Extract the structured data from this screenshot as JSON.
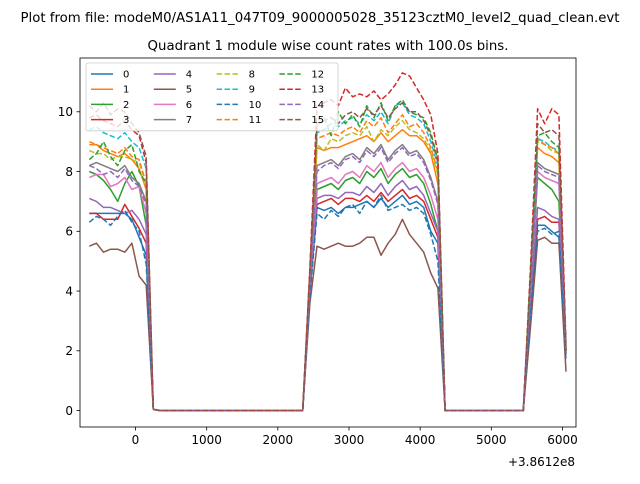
{
  "suptitle": "Plot from file: modeM0/AS1A11_047T09_9000005028_35123cztM0_level2_quad_clean.evt",
  "chart_data": {
    "type": "line",
    "title": "Quadrant 1 module wise count rates with 100.0s bins.",
    "xlabel": "",
    "ylabel": "",
    "x_offset_label": "+3.8612e8",
    "xlim": [
      -780,
      6190
    ],
    "ylim": [
      -0.55,
      11.8
    ],
    "xticks": [
      0,
      1000,
      2000,
      3000,
      4000,
      5000,
      6000
    ],
    "yticks": [
      0,
      2,
      4,
      6,
      8,
      10
    ],
    "grid": false,
    "legend": {
      "position": "top-left",
      "columns": 4
    },
    "x": [
      -650,
      -550,
      -450,
      -350,
      -250,
      -150,
      -50,
      50,
      150,
      250,
      350,
      450,
      550,
      650,
      750,
      850,
      950,
      1050,
      1150,
      1250,
      1350,
      1450,
      1550,
      1650,
      1750,
      1850,
      1950,
      2050,
      2150,
      2250,
      2350,
      2450,
      2550,
      2650,
      2750,
      2850,
      2950,
      3050,
      3150,
      3250,
      3350,
      3450,
      3550,
      3650,
      3750,
      3850,
      3950,
      4050,
      4150,
      4250,
      4350,
      4450,
      4550,
      4650,
      4750,
      4850,
      4950,
      5050,
      5150,
      5250,
      5350,
      5450,
      5550,
      5650,
      5750,
      5850,
      5950,
      6050
    ],
    "series": [
      {
        "name": "0",
        "color": "#1f77b4",
        "dash": false,
        "values": [
          6.6,
          6.6,
          6.6,
          6.6,
          6.6,
          6.6,
          6.4,
          5.8,
          5.2,
          0.04,
          0.0,
          0.0,
          0.0,
          0.0,
          0.0,
          0.0,
          0.0,
          0.0,
          0.0,
          0.0,
          0.0,
          0.0,
          0.0,
          0.0,
          0.0,
          0.0,
          0.0,
          0.0,
          0.0,
          0.0,
          0.0,
          4.0,
          6.8,
          6.7,
          6.8,
          6.6,
          6.8,
          6.8,
          6.9,
          7.0,
          6.8,
          7.1,
          6.8,
          7.0,
          7.2,
          6.9,
          7.0,
          6.8,
          6.0,
          5.6,
          0.0,
          0.0,
          0.0,
          0.0,
          0.0,
          0.0,
          0.0,
          0.0,
          0.0,
          0.0,
          0.0,
          0.0,
          3.4,
          6.2,
          6.2,
          6.0,
          5.8,
          2.0
        ]
      },
      {
        "name": "1",
        "color": "#ff7f0e",
        "dash": false,
        "values": [
          8.9,
          8.9,
          8.7,
          8.6,
          8.5,
          8.6,
          8.4,
          8.1,
          7.4,
          0.04,
          0.0,
          0.0,
          0.0,
          0.0,
          0.0,
          0.0,
          0.0,
          0.0,
          0.0,
          0.0,
          0.0,
          0.0,
          0.0,
          0.0,
          0.0,
          0.0,
          0.0,
          0.0,
          0.0,
          0.0,
          0.0,
          4.5,
          8.8,
          8.7,
          8.8,
          8.8,
          8.9,
          9.0,
          9.1,
          9.2,
          9.0,
          9.3,
          9.0,
          9.2,
          9.4,
          9.2,
          9.2,
          9.0,
          8.6,
          7.6,
          0.0,
          0.0,
          0.0,
          0.0,
          0.0,
          0.0,
          0.0,
          0.0,
          0.0,
          0.0,
          0.0,
          0.0,
          4.2,
          8.8,
          8.6,
          8.5,
          8.3,
          2.0
        ]
      },
      {
        "name": "2",
        "color": "#2ca02c",
        "dash": false,
        "values": [
          8.0,
          7.9,
          7.7,
          7.4,
          7.0,
          7.6,
          8.0,
          7.5,
          6.2,
          0.04,
          0.0,
          0.0,
          0.0,
          0.0,
          0.0,
          0.0,
          0.0,
          0.0,
          0.0,
          0.0,
          0.0,
          0.0,
          0.0,
          0.0,
          0.0,
          0.0,
          0.0,
          0.0,
          0.0,
          0.0,
          0.0,
          4.2,
          7.4,
          7.5,
          7.6,
          7.4,
          7.7,
          7.8,
          7.6,
          8.0,
          7.8,
          8.1,
          7.6,
          7.9,
          8.1,
          7.8,
          7.9,
          7.6,
          6.9,
          6.0,
          0.0,
          0.0,
          0.0,
          0.0,
          0.0,
          0.0,
          0.0,
          0.0,
          0.0,
          0.0,
          0.0,
          0.0,
          3.8,
          7.8,
          7.6,
          7.4,
          7.0,
          1.9
        ]
      },
      {
        "name": "3",
        "color": "#d62728",
        "dash": false,
        "values": [
          6.6,
          6.6,
          6.4,
          6.4,
          6.4,
          6.9,
          6.5,
          6.1,
          5.6,
          0.04,
          0.0,
          0.0,
          0.0,
          0.0,
          0.0,
          0.0,
          0.0,
          0.0,
          0.0,
          0.0,
          0.0,
          0.0,
          0.0,
          0.0,
          0.0,
          0.0,
          0.0,
          0.0,
          0.0,
          0.0,
          0.0,
          4.0,
          6.9,
          7.0,
          7.1,
          6.9,
          7.1,
          7.1,
          7.0,
          7.2,
          7.0,
          7.3,
          7.0,
          7.2,
          7.4,
          7.1,
          7.2,
          7.0,
          6.4,
          5.8,
          0.0,
          0.0,
          0.0,
          0.0,
          0.0,
          0.0,
          0.0,
          0.0,
          0.0,
          0.0,
          0.0,
          0.0,
          3.5,
          6.4,
          6.5,
          6.3,
          6.3,
          2.0
        ]
      },
      {
        "name": "4",
        "color": "#9467bd",
        "dash": false,
        "values": [
          7.1,
          7.0,
          6.8,
          6.8,
          6.7,
          6.6,
          6.7,
          6.4,
          5.9,
          0.04,
          0.0,
          0.0,
          0.0,
          0.0,
          0.0,
          0.0,
          0.0,
          0.0,
          0.0,
          0.0,
          0.0,
          0.0,
          0.0,
          0.0,
          0.0,
          0.0,
          0.0,
          0.0,
          0.0,
          0.0,
          0.0,
          4.1,
          7.1,
          7.2,
          7.2,
          7.1,
          7.3,
          7.3,
          7.2,
          7.5,
          7.3,
          7.6,
          7.2,
          7.5,
          7.7,
          7.4,
          7.5,
          7.2,
          6.6,
          6.0,
          0.0,
          0.0,
          0.0,
          0.0,
          0.0,
          0.0,
          0.0,
          0.0,
          0.0,
          0.0,
          0.0,
          0.0,
          3.6,
          6.8,
          6.7,
          6.5,
          6.4,
          1.9
        ]
      },
      {
        "name": "5",
        "color": "#8c564b",
        "dash": false,
        "values": [
          5.5,
          5.6,
          5.3,
          5.4,
          5.4,
          5.3,
          5.6,
          4.5,
          4.2,
          0.04,
          0.0,
          0.0,
          0.0,
          0.0,
          0.0,
          0.0,
          0.0,
          0.0,
          0.0,
          0.0,
          0.0,
          0.0,
          0.0,
          0.0,
          0.0,
          0.0,
          0.0,
          0.0,
          0.0,
          0.0,
          0.0,
          3.6,
          5.5,
          5.4,
          5.5,
          5.6,
          5.5,
          5.5,
          5.6,
          5.8,
          5.8,
          5.2,
          5.6,
          5.9,
          6.4,
          5.9,
          5.6,
          5.3,
          4.6,
          4.1,
          0.0,
          0.0,
          0.0,
          0.0,
          0.0,
          0.0,
          0.0,
          0.0,
          0.0,
          0.0,
          0.0,
          0.0,
          2.8,
          5.7,
          5.8,
          5.6,
          5.6,
          1.3
        ]
      },
      {
        "name": "6",
        "color": "#e377c2",
        "dash": false,
        "values": [
          7.8,
          7.9,
          7.9,
          7.5,
          7.6,
          7.8,
          7.4,
          7.5,
          6.6,
          0.04,
          0.0,
          0.0,
          0.0,
          0.0,
          0.0,
          0.0,
          0.0,
          0.0,
          0.0,
          0.0,
          0.0,
          0.0,
          0.0,
          0.0,
          0.0,
          0.0,
          0.0,
          0.0,
          0.0,
          0.0,
          0.0,
          4.2,
          7.6,
          7.7,
          7.8,
          7.6,
          7.9,
          8.0,
          7.8,
          8.2,
          8.0,
          8.3,
          7.8,
          8.1,
          8.3,
          8.0,
          8.1,
          7.8,
          7.2,
          6.4,
          0.0,
          0.0,
          0.0,
          0.0,
          0.0,
          0.0,
          0.0,
          0.0,
          0.0,
          0.0,
          0.0,
          0.0,
          3.9,
          8.0,
          7.8,
          7.7,
          7.6,
          2.0
        ]
      },
      {
        "name": "7",
        "color": "#7f7f7f",
        "dash": false,
        "values": [
          8.2,
          8.3,
          8.2,
          8.1,
          8.0,
          8.2,
          7.8,
          7.6,
          7.0,
          0.04,
          0.0,
          0.0,
          0.0,
          0.0,
          0.0,
          0.0,
          0.0,
          0.0,
          0.0,
          0.0,
          0.0,
          0.0,
          0.0,
          0.0,
          0.0,
          0.0,
          0.0,
          0.0,
          0.0,
          0.0,
          0.0,
          4.3,
          8.2,
          8.3,
          8.4,
          8.2,
          8.5,
          8.6,
          8.4,
          8.8,
          8.6,
          8.9,
          8.4,
          8.7,
          8.9,
          8.6,
          8.7,
          8.4,
          7.8,
          7.0,
          0.0,
          0.0,
          0.0,
          0.0,
          0.0,
          0.0,
          0.0,
          0.0,
          0.0,
          0.0,
          0.0,
          0.0,
          4.0,
          8.3,
          8.1,
          8.0,
          7.9,
          2.0
        ]
      },
      {
        "name": "8",
        "color": "#bcbd22",
        "dash": true,
        "values": [
          8.7,
          8.6,
          8.6,
          8.4,
          8.5,
          8.5,
          8.4,
          8.3,
          7.6,
          0.04,
          0.0,
          0.0,
          0.0,
          0.0,
          0.0,
          0.0,
          0.0,
          0.0,
          0.0,
          0.0,
          0.0,
          0.0,
          0.0,
          0.0,
          0.0,
          0.0,
          0.0,
          0.0,
          0.0,
          0.0,
          0.0,
          4.5,
          8.9,
          8.7,
          9.1,
          9.0,
          9.2,
          9.3,
          9.2,
          9.5,
          9.0,
          9.4,
          9.2,
          9.5,
          9.7,
          9.4,
          9.3,
          9.1,
          8.7,
          7.9,
          0.0,
          0.0,
          0.0,
          0.0,
          0.0,
          0.0,
          0.0,
          0.0,
          0.0,
          0.0,
          0.0,
          0.0,
          4.3,
          9.0,
          8.9,
          8.7,
          8.6,
          2.0
        ]
      },
      {
        "name": "9",
        "color": "#17becf",
        "dash": true,
        "values": [
          9.4,
          9.5,
          9.3,
          9.2,
          9.1,
          9.3,
          9.0,
          8.8,
          8.1,
          0.04,
          0.0,
          0.0,
          0.0,
          0.0,
          0.0,
          0.0,
          0.0,
          0.0,
          0.0,
          0.0,
          0.0,
          0.0,
          0.0,
          0.0,
          0.0,
          0.0,
          0.0,
          0.0,
          0.0,
          0.0,
          0.0,
          4.6,
          9.3,
          9.4,
          9.6,
          9.5,
          9.7,
          9.8,
          9.6,
          9.9,
          9.7,
          10.0,
          9.6,
          10.2,
          10.3,
          9.9,
          9.8,
          9.6,
          9.0,
          8.2,
          0.0,
          0.0,
          0.0,
          0.0,
          0.0,
          0.0,
          0.0,
          0.0,
          0.0,
          0.0,
          0.0,
          0.0,
          4.5,
          9.1,
          9.0,
          8.8,
          8.7,
          2.0
        ]
      },
      {
        "name": "10",
        "color": "#1f77b4",
        "dash": true,
        "values": [
          6.3,
          6.5,
          6.4,
          6.2,
          6.5,
          6.7,
          6.3,
          6.0,
          4.9,
          0.04,
          0.0,
          0.0,
          0.0,
          0.0,
          0.0,
          0.0,
          0.0,
          0.0,
          0.0,
          0.0,
          0.0,
          0.0,
          0.0,
          0.0,
          0.0,
          0.0,
          0.0,
          0.0,
          0.0,
          0.0,
          0.0,
          3.8,
          6.6,
          6.4,
          6.7,
          6.5,
          6.8,
          6.9,
          6.6,
          7.0,
          6.8,
          7.2,
          6.7,
          6.8,
          6.9,
          6.7,
          6.8,
          6.6,
          5.9,
          5.0,
          0.0,
          0.0,
          0.0,
          0.0,
          0.0,
          0.0,
          0.0,
          0.0,
          0.0,
          0.0,
          0.0,
          0.0,
          3.3,
          6.0,
          6.1,
          5.9,
          6.0,
          1.7
        ]
      },
      {
        "name": "11",
        "color": "#ff7f0e",
        "dash": true,
        "values": [
          9.0,
          8.9,
          8.8,
          8.7,
          8.6,
          8.8,
          8.5,
          8.4,
          7.6,
          0.04,
          0.0,
          0.0,
          0.0,
          0.0,
          0.0,
          0.0,
          0.0,
          0.0,
          0.0,
          0.0,
          0.0,
          0.0,
          0.0,
          0.0,
          0.0,
          0.0,
          0.0,
          0.0,
          0.0,
          0.0,
          0.0,
          4.5,
          9.1,
          9.2,
          9.3,
          9.2,
          9.4,
          9.5,
          9.3,
          9.7,
          9.5,
          9.8,
          9.3,
          9.6,
          9.9,
          9.5,
          9.6,
          9.3,
          8.8,
          8.0,
          0.0,
          0.0,
          0.0,
          0.0,
          0.0,
          0.0,
          0.0,
          0.0,
          0.0,
          0.0,
          0.0,
          0.0,
          4.4,
          9.1,
          8.9,
          8.8,
          8.6,
          2.0
        ]
      },
      {
        "name": "12",
        "color": "#2ca02c",
        "dash": true,
        "values": [
          8.4,
          8.6,
          9.0,
          8.5,
          8.2,
          8.7,
          8.9,
          8.0,
          7.6,
          0.04,
          0.0,
          0.0,
          0.0,
          0.0,
          0.0,
          0.0,
          0.0,
          0.0,
          0.0,
          0.0,
          0.0,
          0.0,
          0.0,
          0.0,
          0.0,
          0.0,
          0.0,
          0.0,
          0.0,
          0.0,
          0.0,
          4.5,
          9.5,
          9.8,
          9.2,
          10.0,
          9.6,
          9.9,
          9.5,
          10.2,
          9.8,
          10.3,
          9.7,
          10.2,
          10.4,
          10.0,
          9.9,
          9.8,
          9.3,
          8.4,
          0.0,
          0.0,
          0.0,
          0.0,
          0.0,
          0.0,
          0.0,
          0.0,
          0.0,
          0.0,
          0.0,
          0.0,
          4.6,
          9.2,
          9.3,
          9.0,
          8.8,
          2.1
        ]
      },
      {
        "name": "13",
        "color": "#d62728",
        "dash": true,
        "values": [
          9.8,
          9.9,
          9.7,
          9.6,
          9.5,
          9.7,
          9.4,
          9.2,
          8.3,
          0.04,
          0.0,
          0.0,
          0.0,
          0.0,
          0.0,
          0.0,
          0.0,
          0.0,
          0.0,
          0.0,
          0.0,
          0.0,
          0.0,
          0.0,
          0.0,
          0.0,
          0.0,
          0.0,
          0.0,
          0.0,
          0.0,
          4.8,
          10.2,
          10.3,
          10.4,
          10.2,
          10.8,
          10.5,
          10.6,
          10.5,
          10.7,
          10.4,
          10.6,
          10.9,
          11.3,
          11.2,
          10.8,
          10.4,
          9.9,
          8.6,
          0.0,
          0.0,
          0.0,
          0.0,
          0.0,
          0.0,
          0.0,
          0.0,
          0.0,
          0.0,
          0.0,
          0.0,
          4.8,
          10.1,
          9.6,
          10.1,
          9.9,
          2.2
        ]
      },
      {
        "name": "14",
        "color": "#9467bd",
        "dash": true,
        "values": [
          8.2,
          8.1,
          7.9,
          8.0,
          7.8,
          8.1,
          7.7,
          7.5,
          6.9,
          0.04,
          0.0,
          0.0,
          0.0,
          0.0,
          0.0,
          0.0,
          0.0,
          0.0,
          0.0,
          0.0,
          0.0,
          0.0,
          0.0,
          0.0,
          0.0,
          0.0,
          0.0,
          0.0,
          0.0,
          0.0,
          0.0,
          4.2,
          8.0,
          8.2,
          8.3,
          8.1,
          8.4,
          8.5,
          8.3,
          8.7,
          8.5,
          8.8,
          8.3,
          8.6,
          8.8,
          8.5,
          8.6,
          8.3,
          7.7,
          6.9,
          0.0,
          0.0,
          0.0,
          0.0,
          0.0,
          0.0,
          0.0,
          0.0,
          0.0,
          0.0,
          0.0,
          0.0,
          3.9,
          8.2,
          8.0,
          7.9,
          7.8,
          2.0
        ]
      },
      {
        "name": "15",
        "color": "#8c564b",
        "dash": true,
        "values": [
          10.2,
          10.0,
          10.3,
          9.9,
          10.1,
          10.0,
          9.6,
          9.3,
          8.5,
          0.04,
          0.0,
          0.0,
          0.0,
          0.0,
          0.0,
          0.0,
          0.0,
          0.0,
          0.0,
          0.0,
          0.0,
          0.0,
          0.0,
          0.0,
          0.0,
          0.0,
          0.0,
          0.0,
          0.0,
          0.0,
          0.0,
          4.7,
          9.6,
          9.7,
          9.8,
          9.6,
          9.9,
          10.0,
          9.8,
          10.1,
          9.9,
          10.2,
          9.8,
          10.1,
          10.3,
          10.0,
          10.0,
          9.7,
          9.2,
          8.3,
          0.0,
          0.0,
          0.0,
          0.0,
          0.0,
          0.0,
          0.0,
          0.0,
          0.0,
          0.0,
          0.0,
          0.0,
          4.5,
          9.6,
          9.3,
          9.4,
          9.2,
          2.0
        ]
      }
    ]
  }
}
